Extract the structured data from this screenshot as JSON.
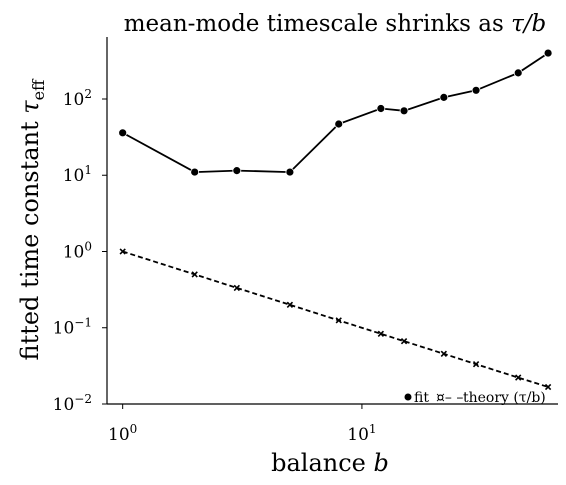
{
  "chart_data": {
    "type": "line",
    "title": "mean-mode timescale shrinks as τ/b",
    "xlabel": "balance b",
    "ylabel": "fitted time constant τ_eff",
    "x_scale": "log",
    "y_scale": "log",
    "xlim": [
      0.86,
      66
    ],
    "ylim": [
      0.01,
      650
    ],
    "x_ticks": [
      {
        "value": 1,
        "base": "10",
        "exp": "0"
      },
      {
        "value": 10,
        "base": "10",
        "exp": "1"
      }
    ],
    "y_ticks": [
      {
        "value": 0.01,
        "base": "10",
        "exp": "−2"
      },
      {
        "value": 0.1,
        "base": "10",
        "exp": "−1"
      },
      {
        "value": 1,
        "base": "10",
        "exp": "0"
      },
      {
        "value": 10,
        "base": "10",
        "exp": "1"
      },
      {
        "value": 100,
        "base": "10",
        "exp": "2"
      }
    ],
    "grid": false,
    "legend_position": "bottom-right",
    "series": [
      {
        "name": "fit",
        "style": "solid",
        "marker": "circle",
        "color": "#000000",
        "x": [
          1,
          2,
          3,
          5,
          8,
          12,
          15,
          22,
          30,
          45,
          60
        ],
        "y": [
          36,
          11,
          11.5,
          11,
          47,
          75,
          70,
          105,
          130,
          220,
          400
        ]
      },
      {
        "name": "theory (τ/b)",
        "style": "dashed",
        "marker": "x",
        "color": "#000000",
        "x": [
          1,
          2,
          3,
          5,
          8,
          12,
          15,
          22,
          30,
          45,
          60
        ],
        "y": [
          1,
          0.5,
          0.333,
          0.2,
          0.125,
          0.0833,
          0.0667,
          0.0455,
          0.0333,
          0.0222,
          0.0167
        ]
      }
    ]
  }
}
